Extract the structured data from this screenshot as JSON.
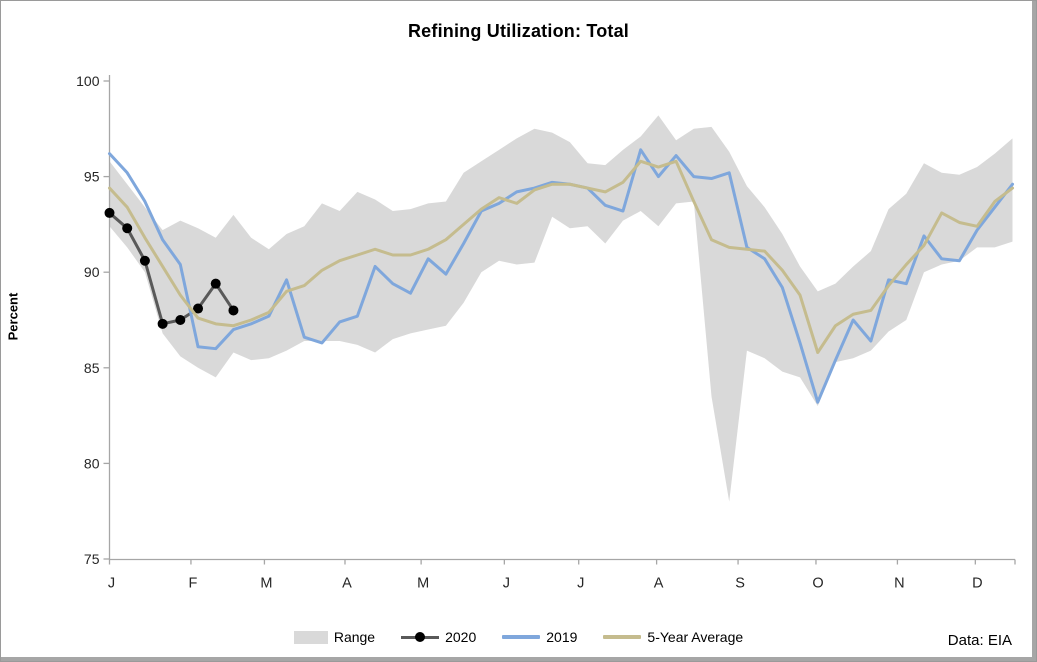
{
  "source_note": "Data: EIA",
  "chart_data": {
    "type": "line",
    "title": "Refining Utilization: Total",
    "xlabel": "",
    "ylabel": "Percent",
    "ylim": [
      75,
      100
    ],
    "y_ticks": [
      100,
      95,
      90,
      85,
      80,
      75
    ],
    "x_tick_labels": [
      "J",
      "F",
      "M",
      "A",
      "M",
      "J",
      "J",
      "A",
      "S",
      "O",
      "N",
      "D"
    ],
    "x_unit": "weekly observations, Jan-Dec",
    "grid": false,
    "legend_position": "bottom",
    "axis_color": "#a6a6a6",
    "tick_label_color": "#262626",
    "series": [
      {
        "name": "Range",
        "type": "band",
        "color": "#d9d9d9",
        "upper": [
          95.8,
          94.6,
          93.4,
          92.2,
          92.7,
          92.3,
          91.8,
          93.0,
          91.8,
          91.2,
          92.0,
          92.4,
          93.6,
          93.2,
          94.2,
          93.8,
          93.2,
          93.3,
          93.6,
          93.7,
          95.2,
          95.8,
          96.4,
          97.0,
          97.5,
          97.3,
          96.8,
          95.7,
          95.6,
          96.4,
          97.1,
          98.2,
          96.9,
          97.5,
          97.6,
          96.3,
          94.5,
          93.4,
          92.0,
          90.3,
          89.0,
          89.4,
          90.3,
          91.1,
          93.3,
          94.1,
          95.7,
          95.2,
          95.1,
          95.5,
          96.2,
          97.0
        ],
        "lower": [
          92.4,
          91.3,
          90.0,
          86.8,
          85.6,
          85.0,
          84.5,
          85.8,
          85.4,
          85.5,
          85.9,
          86.4,
          86.4,
          86.4,
          86.2,
          85.8,
          86.5,
          86.8,
          87.0,
          87.2,
          88.4,
          90.0,
          90.6,
          90.4,
          90.5,
          92.9,
          92.3,
          92.4,
          91.5,
          92.7,
          93.2,
          92.4,
          93.6,
          93.7,
          83.5,
          78.0,
          85.9,
          85.5,
          84.8,
          84.5,
          83.0,
          85.3,
          85.5,
          85.9,
          86.9,
          87.5,
          90.0,
          90.4,
          90.6,
          91.3,
          91.3,
          91.6
        ]
      },
      {
        "name": "2020",
        "type": "line-marker",
        "color": "#595959",
        "marker_color": "#000000",
        "values": [
          93.1,
          92.3,
          90.6,
          87.3,
          87.5,
          88.1,
          89.4,
          88.0
        ]
      },
      {
        "name": "2019",
        "type": "line",
        "color": "#7fa7dc",
        "values": [
          96.2,
          95.2,
          93.7,
          91.7,
          90.4,
          86.1,
          86.0,
          87.0,
          87.3,
          87.7,
          89.6,
          86.6,
          86.3,
          87.4,
          87.7,
          90.3,
          89.4,
          88.9,
          90.7,
          89.9,
          91.5,
          93.2,
          93.6,
          94.2,
          94.4,
          94.7,
          94.6,
          94.4,
          93.5,
          93.2,
          96.4,
          95.0,
          96.1,
          95.0,
          94.9,
          95.2,
          91.3,
          90.7,
          89.2,
          86.3,
          83.2,
          85.4,
          87.5,
          86.4,
          89.6,
          89.4,
          91.9,
          90.7,
          90.6,
          92.2,
          93.4,
          94.6
        ]
      },
      {
        "name": "5-Year Average",
        "type": "line",
        "color": "#c5bc8e",
        "values": [
          94.4,
          93.4,
          91.8,
          90.3,
          88.8,
          87.6,
          87.3,
          87.2,
          87.5,
          87.9,
          89.0,
          89.3,
          90.1,
          90.6,
          90.9,
          91.2,
          90.9,
          90.9,
          91.2,
          91.7,
          92.5,
          93.3,
          93.9,
          93.6,
          94.3,
          94.6,
          94.6,
          94.4,
          94.2,
          94.7,
          95.8,
          95.5,
          95.8,
          93.7,
          91.7,
          91.3,
          91.2,
          91.1,
          90.1,
          88.8,
          85.8,
          87.2,
          87.8,
          88.0,
          89.3,
          90.4,
          91.4,
          93.1,
          92.6,
          92.4,
          93.7,
          94.4
        ]
      }
    ]
  }
}
